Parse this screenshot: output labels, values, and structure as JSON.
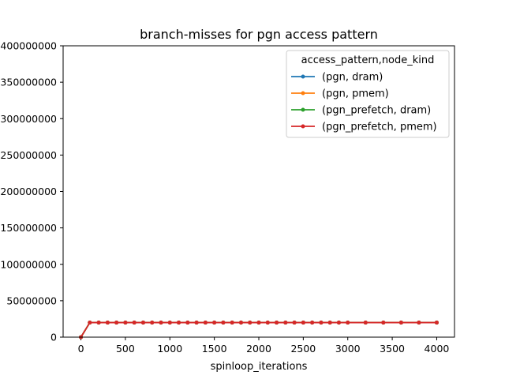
{
  "chart_data": {
    "type": "line",
    "title": "branch-misses for pgn access pattern",
    "xlabel": "spinloop_iterations",
    "ylabel": "",
    "xlim": [
      -200,
      4200
    ],
    "ylim": [
      0,
      400000000
    ],
    "xticks": [
      0,
      500,
      1000,
      1500,
      2000,
      2500,
      3000,
      3500,
      4000
    ],
    "xtick_labels": [
      "0",
      "500",
      "1000",
      "1500",
      "2000",
      "2500",
      "3000",
      "3500",
      "4000"
    ],
    "yticks": [
      0,
      50000000,
      100000000,
      150000000,
      200000000,
      250000000,
      300000000,
      350000000,
      400000000
    ],
    "ytick_labels": [
      "0",
      "50000000",
      "100000000",
      "150000000",
      "200000000",
      "250000000",
      "300000000",
      "350000000",
      "400000000"
    ],
    "grid": false,
    "legend": {
      "title": "access_pattern,node_kind",
      "placement": "top-right"
    },
    "x": [
      0,
      100,
      200,
      300,
      400,
      500,
      600,
      700,
      800,
      900,
      1000,
      1100,
      1200,
      1300,
      1400,
      1500,
      1600,
      1700,
      1800,
      1900,
      2000,
      2100,
      2200,
      2300,
      2400,
      2500,
      2600,
      2700,
      2800,
      2900,
      3000,
      3200,
      3400,
      3600,
      3800,
      4000
    ],
    "series": [
      {
        "name": "(pgn, dram)",
        "color": "#1f77b4",
        "values": [
          0,
          20000000,
          20000000,
          20000000,
          20000000,
          20000000,
          20000000,
          20000000,
          20000000,
          20000000,
          20000000,
          20000000,
          20000000,
          20000000,
          20000000,
          20000000,
          20000000,
          20000000,
          20000000,
          20000000,
          20000000,
          20000000,
          20000000,
          20000000,
          20000000,
          20000000,
          20000000,
          20000000,
          20000000,
          20000000,
          20000000,
          20000000,
          20000000,
          20000000,
          20000000,
          20000000
        ]
      },
      {
        "name": "(pgn, pmem)",
        "color": "#ff7f0e",
        "values": [
          0,
          20000000,
          20000000,
          20000000,
          20000000,
          20000000,
          20000000,
          20000000,
          20000000,
          20000000,
          20000000,
          20000000,
          20000000,
          20000000,
          20000000,
          20000000,
          20000000,
          20000000,
          20000000,
          20000000,
          20000000,
          20000000,
          20000000,
          20000000,
          20000000,
          20000000,
          20000000,
          20000000,
          20000000,
          20000000,
          20000000,
          20000000,
          20000000,
          20000000,
          20000000,
          20000000
        ]
      },
      {
        "name": "(pgn_prefetch, dram)",
        "color": "#2ca02c",
        "values": [
          0,
          20000000,
          20000000,
          20000000,
          20000000,
          20000000,
          20000000,
          20000000,
          20000000,
          20000000,
          20000000,
          20000000,
          20000000,
          20000000,
          20000000,
          20000000,
          20000000,
          20000000,
          20000000,
          20000000,
          20000000,
          20000000,
          20000000,
          20000000,
          20000000,
          20000000,
          20000000,
          20000000,
          20000000,
          20000000,
          20000000,
          20000000,
          20000000,
          20000000,
          20000000,
          20000000
        ]
      },
      {
        "name": "(pgn_prefetch, pmem)",
        "color": "#d62728",
        "values": [
          0,
          20000000,
          20000000,
          20000000,
          20000000,
          20000000,
          20000000,
          20000000,
          20000000,
          20000000,
          20000000,
          20000000,
          20000000,
          20000000,
          20000000,
          20000000,
          20000000,
          20000000,
          20000000,
          20000000,
          20000000,
          20000000,
          20000000,
          20000000,
          20000000,
          20000000,
          20000000,
          20000000,
          20000000,
          20000000,
          20000000,
          20000000,
          20000000,
          20000000,
          20000000,
          20000000
        ]
      }
    ]
  }
}
